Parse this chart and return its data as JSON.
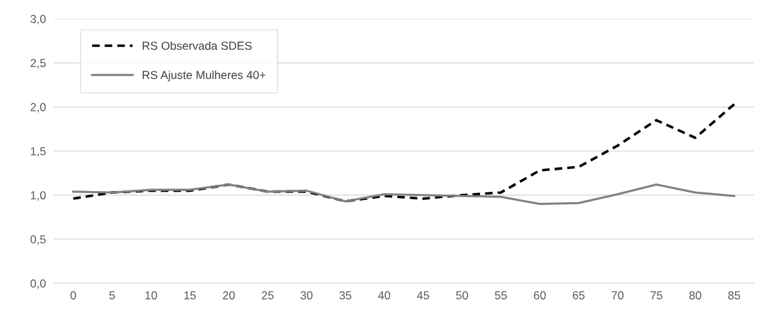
{
  "chart_data": {
    "type": "line",
    "categories": [
      "0",
      "5",
      "10",
      "15",
      "20",
      "25",
      "30",
      "35",
      "40",
      "45",
      "50",
      "55",
      "60",
      "65",
      "70",
      "75",
      "80",
      "85"
    ],
    "series": [
      {
        "name": "RS Observada SDES",
        "color": "#000000",
        "line_style": "dashed",
        "values": [
          0.96,
          1.03,
          1.05,
          1.05,
          1.12,
          1.04,
          1.04,
          0.93,
          0.99,
          0.96,
          1.0,
          1.03,
          1.28,
          1.32,
          1.56,
          1.85,
          1.65,
          2.03
        ]
      },
      {
        "name": "RS Ajuste Mulheres 40+",
        "color": "#808080",
        "line_style": "solid",
        "values": [
          1.04,
          1.03,
          1.06,
          1.06,
          1.12,
          1.04,
          1.05,
          0.93,
          1.01,
          1.0,
          0.99,
          0.98,
          0.9,
          0.91,
          1.01,
          1.12,
          1.03,
          0.99
        ]
      }
    ],
    "ylim": [
      0,
      3
    ],
    "yticks": [
      {
        "value": 0,
        "label": "0,0"
      },
      {
        "value": 0.5,
        "label": "0,5"
      },
      {
        "value": 1,
        "label": "1,0"
      },
      {
        "value": 1.5,
        "label": "1,5"
      },
      {
        "value": 2,
        "label": "2,0"
      },
      {
        "value": 2.5,
        "label": "2,5"
      },
      {
        "value": 3,
        "label": "3,0"
      }
    ],
    "grid": "y",
    "legend": "top left",
    "marker": "none"
  }
}
